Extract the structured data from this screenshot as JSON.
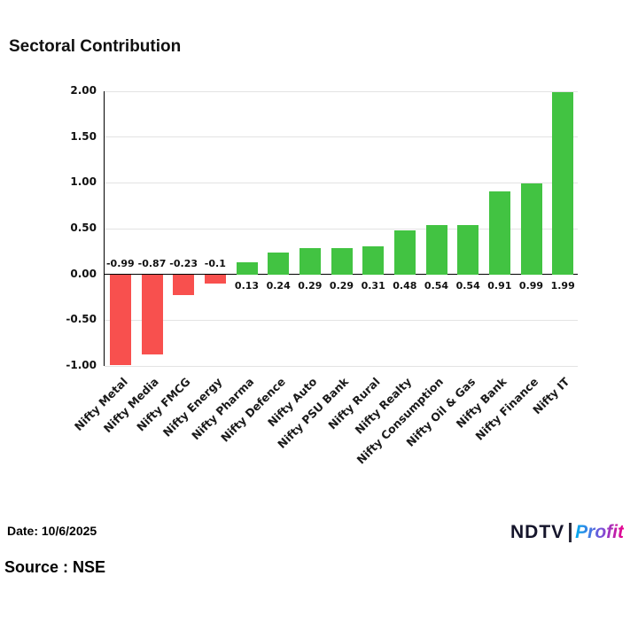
{
  "header": {
    "title": "Sectoral Contribution"
  },
  "footer": {
    "date": "Date: 10/6/2025",
    "source": "Source : NSE",
    "logo_ndtv": "NDTV",
    "logo_profit": "Profit"
  },
  "chart_data": {
    "type": "bar",
    "title": "Sectoral Contribution",
    "categories": [
      "Nifty Metal",
      "Nifty Media",
      "Nifty FMCG",
      "Nifty Energy",
      "Nifty Pharma",
      "Nifty Defence",
      "Nifty Auto",
      "Nifty PSU Bank",
      "Nifty Rural",
      "Nifty Realty",
      "Nifty Consumption",
      "Nifty Oil & Gas",
      "Nifty Bank",
      "Nifty Finance",
      "Nifty IT"
    ],
    "values": [
      -0.99,
      -0.87,
      -0.23,
      -0.1,
      0.13,
      0.24,
      0.29,
      0.29,
      0.31,
      0.48,
      0.54,
      0.54,
      0.91,
      0.99,
      1.99
    ],
    "value_labels": [
      "-0.99",
      "-0.87",
      "-0.23",
      "-0.1",
      "0.13",
      "0.24",
      "0.29",
      "0.29",
      "0.31",
      "0.48",
      "0.54",
      "0.54",
      "0.91",
      "0.99",
      "1.99"
    ],
    "xlabel": "",
    "ylabel": "",
    "ylim": [
      -1.0,
      2.0
    ],
    "yticks": [
      {
        "value": 2.0,
        "label": "2.00"
      },
      {
        "value": 1.5,
        "label": "1.50"
      },
      {
        "value": 1.0,
        "label": "1.00"
      },
      {
        "value": 0.5,
        "label": "0.50"
      },
      {
        "value": 0.0,
        "label": "0.00"
      },
      {
        "value": -0.5,
        "label": "-0.50"
      },
      {
        "value": -1.0,
        "label": "-1.00"
      }
    ],
    "grid": true,
    "legend": false,
    "positive_color": "#42c342",
    "negative_color": "#f8504e"
  }
}
